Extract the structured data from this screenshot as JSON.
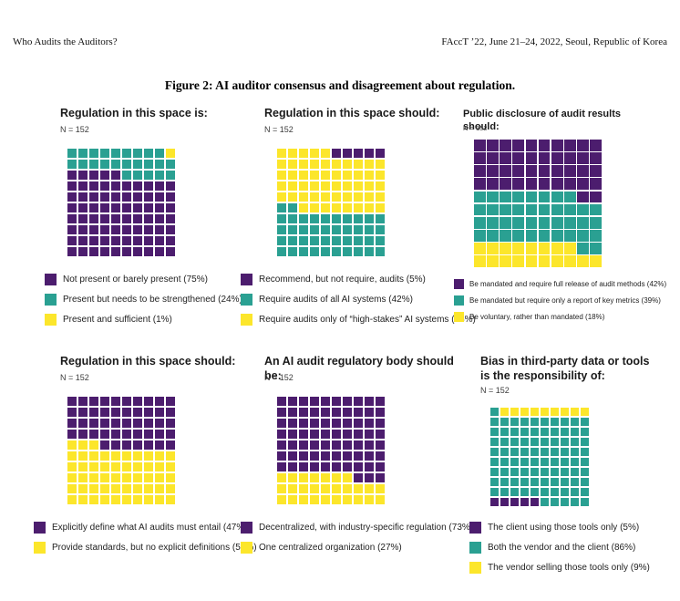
{
  "page": {
    "header_left": "Who Audits the Auditors?",
    "header_right": "FAccT ’22, June 21–24, 2022, Seoul, Republic of Korea",
    "figure_caption": "Figure 2: AI auditor consensus and disagreement about regulation."
  },
  "colors": {
    "purple": "#4c1d6e",
    "teal": "#2aa092",
    "yellow": "#fce62b"
  },
  "cell_key": {
    "P": "purple",
    "T": "teal",
    "Y": "yellow"
  },
  "chart_data": [
    {
      "type": "waffle",
      "title": "Regulation in this space is:",
      "n_label": "N = 152",
      "categories": [
        "Not present or barely present",
        "Present but needs to be strengthened",
        "Present and sufficient"
      ],
      "values": [
        75,
        24,
        1
      ],
      "legend": [
        {
          "color": "purple",
          "label": "Not present or barely present (75%)"
        },
        {
          "color": "teal",
          "label": "Present but needs to be strengthened (24%)"
        },
        {
          "color": "yellow",
          "label": "Present and sufficient (1%)"
        }
      ],
      "grid": [
        "TTTTTTTTTY",
        "TTTTTTTTTT",
        "PPPPPTTTTT",
        "PPPPPPPPPP",
        "PPPPPPPPPP",
        "PPPPPPPPPP",
        "PPPPPPPPPP",
        "PPPPPPPPPP",
        "PPPPPPPPPP",
        "PPPPPPPPPP"
      ]
    },
    {
      "type": "waffle",
      "title": "Regulation in this space should:",
      "n_label": "N = 152",
      "categories": [
        "Recommend, but not require, audits",
        "Require audits of all AI systems",
        "Require audits only of “high-stakes” AI systems"
      ],
      "values": [
        5,
        42,
        53
      ],
      "legend": [
        {
          "color": "purple",
          "label": "Recommend, but not require, audits (5%)"
        },
        {
          "color": "teal",
          "label": "Require audits of all AI systems (42%)"
        },
        {
          "color": "yellow",
          "label": "Require audits only of “high-stakes” AI systems (53%)"
        }
      ],
      "grid": [
        "YYYYYPPPPP",
        "YYYYYYYYYY",
        "YYYYYYYYYY",
        "YYYYYYYYYY",
        "YYYYYYYYYY",
        "TTYYYYYYYY",
        "TTTTTTTTTT",
        "TTTTTTTTTT",
        "TTTTTTTTTT",
        "TTTTTTTTTT"
      ]
    },
    {
      "type": "waffle",
      "title": "Public disclosure of audit results should:",
      "n_label": "N = 152",
      "categories": [
        "Be mandated and require full release of audit methods",
        "Be mandated but require only a report of key metrics",
        "Be voluntary, rather than mandated"
      ],
      "values": [
        42,
        39,
        18
      ],
      "legend": [
        {
          "color": "purple",
          "label": "Be mandated and require full release of audit methods (42%)"
        },
        {
          "color": "teal",
          "label": "Be mandated but require only a report of key metrics (39%)"
        },
        {
          "color": "yellow",
          "label": "Be voluntary, rather than mandated (18%)"
        }
      ],
      "grid": [
        "PPPPPPPPPP",
        "PPPPPPPPPP",
        "PPPPPPPPPP",
        "PPPPPPPPPP",
        "TTTTTTTTPP",
        "TTTTTTTTTT",
        "TTTTTTTTTT",
        "TTTTTTTTTT",
        "YYYYYYYYTT",
        "YYYYYYYYYY"
      ]
    },
    {
      "type": "waffle",
      "title": "Regulation in this space should:",
      "n_label": "N = 152",
      "categories": [
        "Explicitly define what AI audits must entail",
        "Provide standards, but no explicit definitions"
      ],
      "values": [
        47,
        53
      ],
      "legend": [
        {
          "color": "purple",
          "label": "Explicitly define what AI audits must entail (47%)"
        },
        {
          "color": "yellow",
          "label": "Provide standards, but no explicit definitions (53%)"
        }
      ],
      "grid": [
        "PPPPPPPPPP",
        "PPPPPPPPPP",
        "PPPPPPPPPP",
        "PPPPPPPPPP",
        "YYYPPPPPPP",
        "YYYYYYYYYY",
        "YYYYYYYYYY",
        "YYYYYYYYYY",
        "YYYYYYYYYY",
        "YYYYYYYYYY"
      ]
    },
    {
      "type": "waffle",
      "title": "An AI audit regulatory body should be:",
      "n_label": "N = 152",
      "categories": [
        "Decentralized, with industry-specific regulation",
        "One centralized organization"
      ],
      "values": [
        73,
        27
      ],
      "legend": [
        {
          "color": "purple",
          "label": "Decentralized, with industry-specific regulation (73%)"
        },
        {
          "color": "yellow",
          "label": "One centralized organization (27%)"
        }
      ],
      "grid": [
        "PPPPPPPPPP",
        "PPPPPPPPPP",
        "PPPPPPPPPP",
        "PPPPPPPPPP",
        "PPPPPPPPPP",
        "PPPPPPPPPP",
        "PPPPPPPPPP",
        "YYYYYYYPPP",
        "YYYYYYYYYY",
        "YYYYYYYYYY"
      ]
    },
    {
      "type": "waffle",
      "title": "Bias in third-party data or tools is the responsibility of:",
      "n_label": "N = 152",
      "categories": [
        "The client using those tools only",
        "Both the vendor and the client",
        "The vendor selling those tools only"
      ],
      "values": [
        5,
        86,
        9
      ],
      "legend": [
        {
          "color": "purple",
          "label": "The client using those tools only (5%)"
        },
        {
          "color": "teal",
          "label": "Both the vendor and the client (86%)"
        },
        {
          "color": "yellow",
          "label": "The vendor selling those tools only (9%)"
        }
      ],
      "grid": [
        "TYYYYYYYYY",
        "TTTTTTTTTT",
        "TTTTTTTTTT",
        "TTTTTTTTTT",
        "TTTTTTTTTT",
        "TTTTTTTTTT",
        "TTTTTTTTTT",
        "TTTTTTTTTT",
        "TTTTTTTTTT",
        "PPPPPTTTTT"
      ]
    }
  ]
}
